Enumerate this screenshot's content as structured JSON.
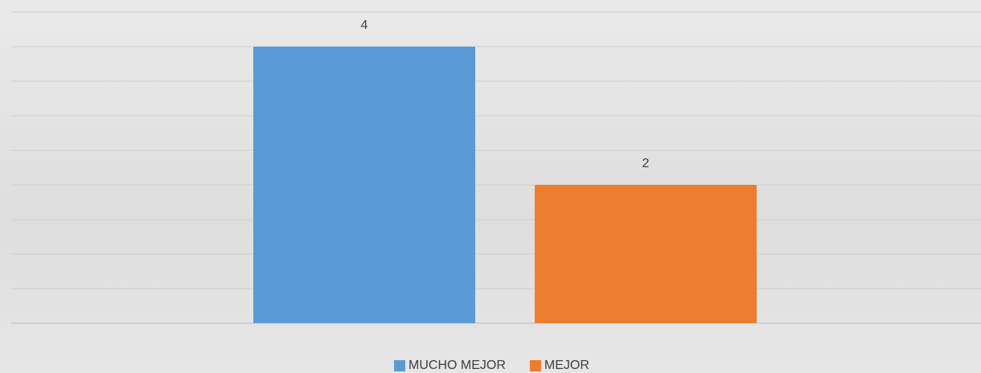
{
  "chart_data": {
    "type": "bar",
    "categories": [
      null
    ],
    "series": [
      {
        "name": "MUCHO MEJOR",
        "color": "#5b9bd5",
        "values": [
          4
        ]
      },
      {
        "name": "MEJOR",
        "color": "#ed7d31",
        "values": [
          2
        ]
      }
    ],
    "ylim": [
      0,
      4.5
    ],
    "legend": "bottom"
  }
}
